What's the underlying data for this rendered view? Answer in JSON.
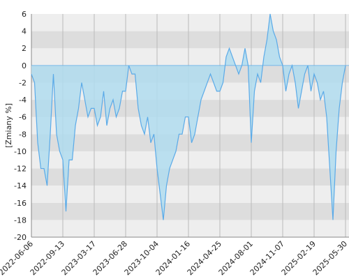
{
  "chart_data": {
    "type": "area",
    "ylabel": "[Zmiany %]",
    "categories": [
      "2022-06-06",
      null,
      null,
      null,
      null,
      null,
      null,
      null,
      null,
      null,
      "2022-09-13",
      null,
      null,
      null,
      null,
      null,
      null,
      null,
      null,
      null,
      "2023-03-17",
      null,
      null,
      null,
      null,
      null,
      null,
      null,
      null,
      null,
      "2023-06-28",
      null,
      null,
      null,
      null,
      null,
      null,
      null,
      null,
      null,
      "2023-10-04",
      null,
      null,
      null,
      null,
      null,
      null,
      null,
      null,
      null,
      "2024-01-16",
      null,
      null,
      null,
      null,
      null,
      null,
      null,
      null,
      null,
      "2024-04-25",
      null,
      null,
      null,
      null,
      null,
      null,
      null,
      null,
      null,
      "2024-08-01",
      null,
      null,
      null,
      null,
      null,
      null,
      null,
      null,
      null,
      "2024-11-07",
      null,
      null,
      null,
      null,
      null,
      null,
      null,
      null,
      null,
      "2025-02-19",
      null,
      null,
      null,
      null,
      null,
      null,
      null,
      null,
      null,
      "2025-05-30"
    ],
    "values": [
      -1,
      -2,
      -9,
      -12,
      -12,
      -14,
      -8,
      -1,
      -8,
      -10,
      -11,
      -17,
      -11,
      -11,
      -7,
      -5,
      -2,
      -4,
      -6,
      -5,
      -5,
      -7,
      -6,
      -3,
      -7,
      -5,
      -4,
      -6,
      -5,
      -3,
      -3,
      0,
      -1,
      -1,
      -5,
      -7,
      -8,
      -6,
      -9,
      -8,
      -12,
      -15,
      -18,
      -14,
      -12,
      -11,
      -10,
      -8,
      -8,
      -6,
      -6,
      -9,
      -8,
      -6,
      -4,
      -3,
      -2,
      -1,
      -2,
      -3,
      -3,
      -2,
      1,
      2,
      1,
      0,
      -1,
      0,
      2,
      0,
      -9,
      -3,
      -1,
      -2,
      1,
      3,
      6,
      4,
      3,
      1,
      0,
      -3,
      -1,
      0,
      -2,
      -5,
      -3,
      -1,
      0,
      -3,
      -1,
      -2,
      -4,
      -3,
      -6,
      -12,
      -18,
      -10,
      -5,
      -2,
      0
    ],
    "color": "#5aaae8",
    "fill": "#b0dcef",
    "ylim": [
      -20,
      6
    ],
    "yticks": [
      -20,
      -18,
      -16,
      -14,
      -12,
      -10,
      -8,
      -6,
      -4,
      -2,
      0,
      2,
      4,
      6
    ],
    "grid": true
  }
}
